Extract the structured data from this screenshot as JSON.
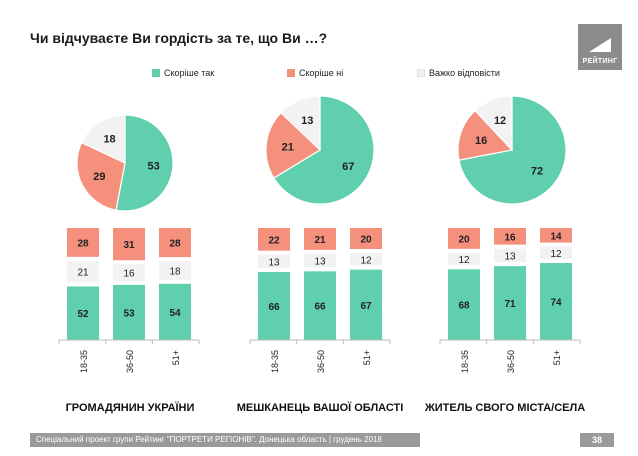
{
  "title": "Чи відчуваєте Ви гордість за те, що Ви …?",
  "logo_text": "РЕЙТИНГ",
  "colors": {
    "yes": "#5fcfae",
    "no": "#f4907c",
    "hard": "#f2f2f2"
  },
  "legend": [
    {
      "label": "Скоріше так",
      "color": "#5fcfae"
    },
    {
      "label": "Скоріше ні",
      "color": "#f4907c"
    },
    {
      "label": "Важко відповісти",
      "color": "#f2f2f2"
    }
  ],
  "chart_data": [
    {
      "type": "pie",
      "group": "ГРОМАДЯНИН УКРАЇНИ",
      "slices": [
        {
          "name": "Скоріше так",
          "value": 53
        },
        {
          "name": "Скоріше ні",
          "value": 29
        },
        {
          "name": "Важко відповісти",
          "value": 18
        }
      ]
    },
    {
      "type": "pie",
      "group": "МЕШКАНЕЦЬ ВАШОЇ ОБЛАСТІ",
      "slices": [
        {
          "name": "Скоріше так",
          "value": 67
        },
        {
          "name": "Скоріше ні",
          "value": 21
        },
        {
          "name": "Важко відповісти",
          "value": 13
        }
      ]
    },
    {
      "type": "pie",
      "group": "ЖИТЕЛЬ СВОГО МІСТА/СЕЛА",
      "slices": [
        {
          "name": "Скоріше так",
          "value": 72
        },
        {
          "name": "Скоріше ні",
          "value": 16
        },
        {
          "name": "Важко відповісти",
          "value": 12
        }
      ]
    },
    {
      "type": "bar",
      "stacked": true,
      "group": "ГРОМАДЯНИН УКРАЇНИ",
      "categories": [
        "18-35",
        "36-50",
        "51+"
      ],
      "series": [
        {
          "name": "Скоріше так",
          "values": [
            52,
            53,
            54
          ]
        },
        {
          "name": "Важко відповісти",
          "values": [
            21,
            16,
            18
          ]
        },
        {
          "name": "Скоріше ні",
          "values": [
            28,
            31,
            28
          ]
        }
      ]
    },
    {
      "type": "bar",
      "stacked": true,
      "group": "МЕШКАНЕЦЬ ВАШОЇ ОБЛАСТІ",
      "categories": [
        "18-35",
        "36-50",
        "51+"
      ],
      "series": [
        {
          "name": "Скоріше так",
          "values": [
            66,
            66,
            67
          ]
        },
        {
          "name": "Важко відповісти",
          "values": [
            13,
            13,
            12
          ]
        },
        {
          "name": "Скоріше ні",
          "values": [
            22,
            21,
            20
          ]
        }
      ]
    },
    {
      "type": "bar",
      "stacked": true,
      "group": "ЖИТЕЛЬ СВОГО МІСТА/СЕЛА",
      "categories": [
        "18-35",
        "36-50",
        "51+"
      ],
      "series": [
        {
          "name": "Скоріше так",
          "values": [
            68,
            71,
            74
          ]
        },
        {
          "name": "Важко відповісти",
          "values": [
            12,
            13,
            12
          ]
        },
        {
          "name": "Скоріше ні",
          "values": [
            20,
            16,
            14
          ]
        }
      ]
    }
  ],
  "group_labels": [
    "ГРОМАДЯНИН УКРАЇНИ",
    "МЕШКАНЕЦЬ ВАШОЇ ОБЛАСТІ",
    "ЖИТЕЛЬ СВОГО МІСТА/СЕЛА"
  ],
  "footer": "Спеціальний проект групи Рейтинг \"ПОРТРЕТИ РЕГІОНІВ\". Донецька область | грудень 2018",
  "page_number": "38"
}
